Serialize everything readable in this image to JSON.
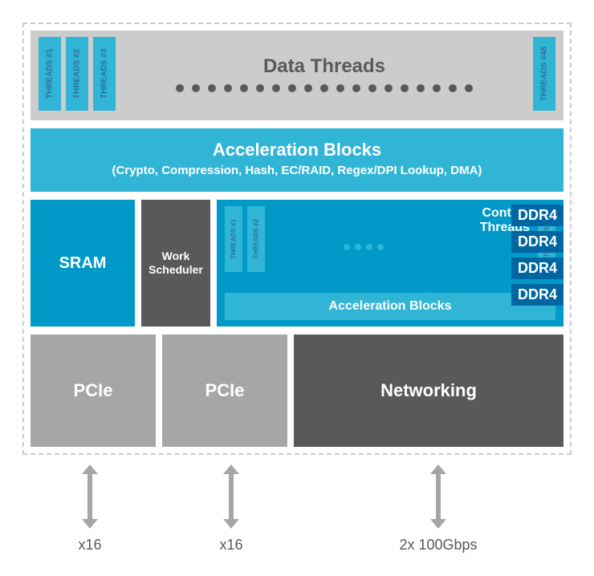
{
  "dataThreads": {
    "title": "Data Threads",
    "leftThreads": [
      "THREADS #1",
      "THREADS #2",
      "THREADS #3"
    ],
    "rightThread": "THREADS #48",
    "dotCount": 19
  },
  "accel": {
    "title": "Acceleration Blocks",
    "subtitle": "(Crypto, Compression, Hash, EC/RAID, Regex/DPI Lookup, DMA)"
  },
  "sram": {
    "label": "SRAM"
  },
  "workScheduler": {
    "label": "Work\nScheduler"
  },
  "control": {
    "title": "Control\nThreads",
    "leftThreads": [
      "THREADS #1",
      "THREADS #2"
    ],
    "rightThread": "THREADS #",
    "dotCount": 4,
    "accelLabel": "Acceleration Blocks"
  },
  "ddr": [
    "DDR4",
    "DDR4",
    "DDR4",
    "DDR4"
  ],
  "bottom": {
    "pcie1": "PCIe",
    "pcie2": "PCIe",
    "networking": "Networking"
  },
  "arrows": {
    "a1": "x16",
    "a2": "x16",
    "a3": "2x 100Gbps"
  },
  "colors": {
    "gray_bg": "#cccccc",
    "gray_md": "#a6a6a6",
    "gray_dk": "#595959",
    "cyan": "#31b5d7",
    "cyan_dk": "#0099c8",
    "blue": "#0066a1",
    "white": "#ffffff"
  }
}
